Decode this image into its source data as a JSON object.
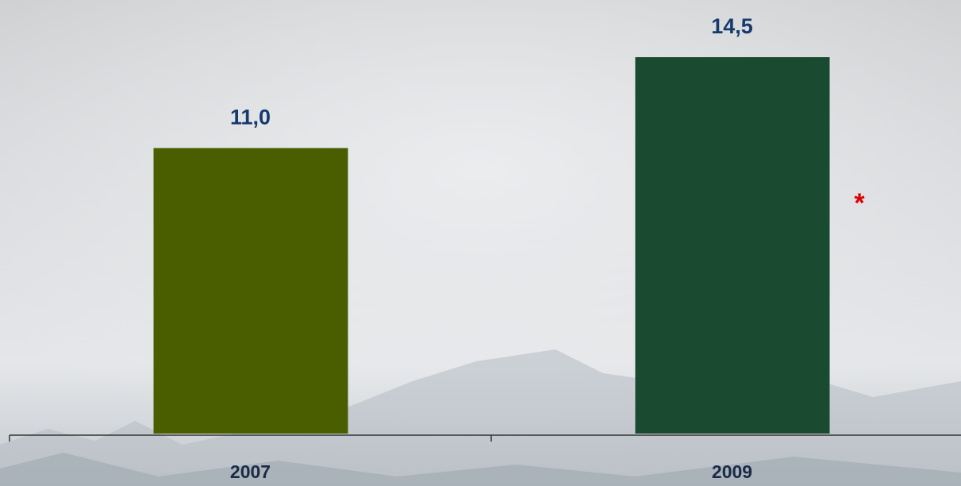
{
  "chart_data": {
    "type": "bar",
    "categories": [
      "2007",
      "2009"
    ],
    "values": [
      11.0,
      14.5
    ],
    "value_labels": [
      "11,0",
      "14,5"
    ],
    "colors": [
      "#4a5e00",
      "#1a4a30"
    ],
    "annotation": "*"
  }
}
